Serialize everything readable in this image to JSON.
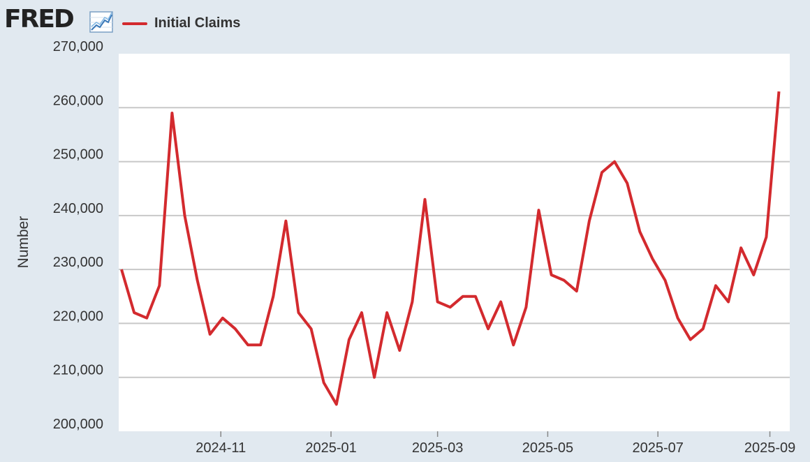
{
  "header": {
    "logo_text": "FRED",
    "logo_icon": "line-chart-icon",
    "legend_label": "Initial Claims"
  },
  "colors": {
    "series": "#d32a2e",
    "background": "#e1e9f0",
    "plot": "#ffffff",
    "grid": "#c8c8c8"
  },
  "chart_data": {
    "type": "line",
    "title": "",
    "xlabel": "",
    "ylabel": "Number",
    "ylim": [
      200000,
      270000
    ],
    "yticks": [
      "200,000",
      "210,000",
      "220,000",
      "230,000",
      "240,000",
      "250,000",
      "260,000",
      "270,000"
    ],
    "xticks": [
      "2024-11",
      "2025-01",
      "2025-03",
      "2025-05",
      "2025-07",
      "2025-09"
    ],
    "grid": true,
    "legend": "top-left",
    "series": [
      {
        "name": "Initial Claims",
        "x": [
          "2024-09-07",
          "2024-09-14",
          "2024-09-21",
          "2024-09-28",
          "2024-10-05",
          "2024-10-12",
          "2024-10-19",
          "2024-10-26",
          "2024-11-02",
          "2024-11-09",
          "2024-11-16",
          "2024-11-23",
          "2024-11-30",
          "2024-12-07",
          "2024-12-14",
          "2024-12-21",
          "2024-12-28",
          "2025-01-04",
          "2025-01-11",
          "2025-01-18",
          "2025-01-25",
          "2025-02-01",
          "2025-02-08",
          "2025-02-15",
          "2025-02-22",
          "2025-03-01",
          "2025-03-08",
          "2025-03-15",
          "2025-03-22",
          "2025-03-29",
          "2025-04-05",
          "2025-04-12",
          "2025-04-19",
          "2025-04-26",
          "2025-05-03",
          "2025-05-10",
          "2025-05-17",
          "2025-05-24",
          "2025-05-31",
          "2025-06-07",
          "2025-06-14",
          "2025-06-21",
          "2025-06-28",
          "2025-07-05",
          "2025-07-12",
          "2025-07-19",
          "2025-07-26",
          "2025-08-02",
          "2025-08-09",
          "2025-08-16",
          "2025-08-23",
          "2025-08-30",
          "2025-09-06"
        ],
        "values": [
          230000,
          222000,
          221000,
          227000,
          259000,
          240000,
          228000,
          218000,
          221000,
          219000,
          216000,
          216000,
          225000,
          239000,
          222000,
          219000,
          209000,
          205000,
          217000,
          222000,
          210000,
          222000,
          215000,
          224000,
          243000,
          224000,
          223000,
          225000,
          225000,
          219000,
          224000,
          216000,
          223000,
          241000,
          229000,
          228000,
          226000,
          239000,
          248000,
          250000,
          246000,
          237000,
          232000,
          228000,
          221000,
          217000,
          219000,
          227000,
          224000,
          234000,
          229000,
          236000,
          263000
        ]
      }
    ]
  }
}
